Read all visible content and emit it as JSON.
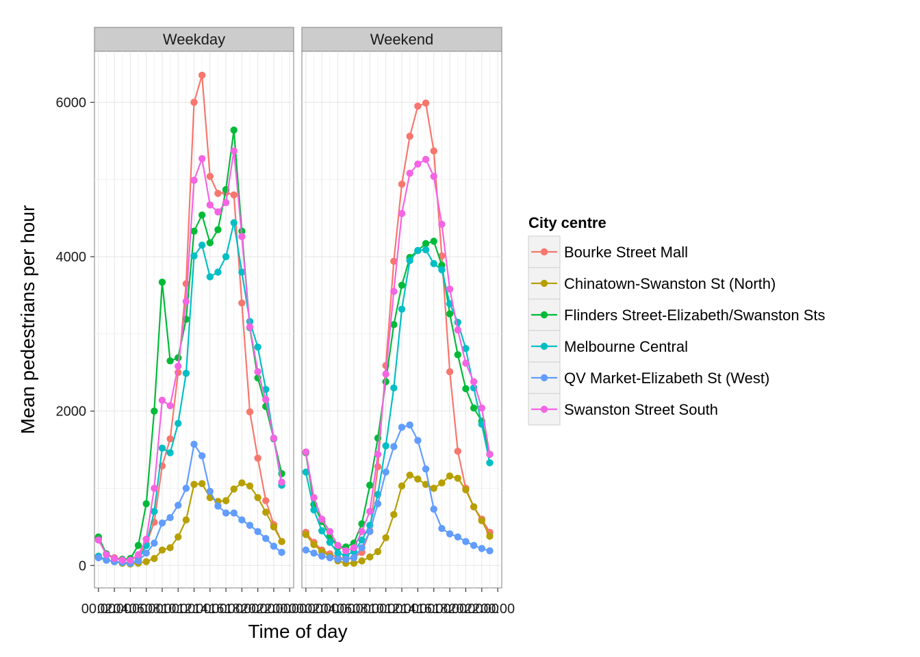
{
  "chart_data": {
    "type": "line",
    "xlabel": "Time of day",
    "ylabel": "Mean pedestrians per hour",
    "ylim": [
      -290,
      6660
    ],
    "y_ticks": [
      0,
      2000,
      4000,
      6000
    ],
    "y_tick_labels": [
      "0",
      "2000",
      "4000",
      "6000"
    ],
    "x": [
      0,
      1,
      2,
      3,
      4,
      5,
      6,
      7,
      8,
      9,
      10,
      11,
      12,
      13,
      14,
      15,
      16,
      17,
      18,
      19,
      20,
      21,
      22,
      23
    ],
    "x_tick_labels": [
      "00:00",
      "02:00",
      "04:00",
      "06:00",
      "08:00",
      "10:00",
      "12:00",
      "14:00",
      "16:00",
      "18:00",
      "20:00",
      "22:00",
      "00:00"
    ],
    "grid": true,
    "legend": {
      "title": "City centre",
      "placement": "right",
      "entries": [
        "Bourke Street Mall",
        "Chinatown-Swanston St (North)",
        "Flinders Street-Elizabeth/Swanston Sts",
        "Melbourne Central",
        "QV Market-Elizabeth St (West)",
        "Swanston Street South"
      ]
    },
    "colors": [
      "#F8766D",
      "#B79F00",
      "#00BA38",
      "#00BFC4",
      "#619CFF",
      "#F564E3"
    ],
    "panels": [
      {
        "label": "Weekday",
        "series": [
          {
            "name": "Bourke Street Mall",
            "values": [
              350,
              150,
              100,
              80,
              70,
              120,
              280,
              560,
              1290,
              1640,
              2500,
              3650,
              6000,
              6350,
              5040,
              4820,
              4830,
              4800,
              3400,
              1990,
              1390,
              840,
              530,
              310
            ]
          },
          {
            "name": "Chinatown-Swanston St (North)",
            "values": [
              120,
              70,
              50,
              30,
              20,
              30,
              50,
              90,
              200,
              230,
              370,
              590,
              1050,
              1060,
              880,
              830,
              840,
              990,
              1070,
              1030,
              880,
              690,
              500,
              310
            ]
          },
          {
            "name": "Flinders Street-Elizabeth/Swanston Sts",
            "values": [
              370,
              150,
              90,
              80,
              90,
              260,
              800,
              2000,
              3670,
              2650,
              2690,
              3190,
              4330,
              4540,
              4180,
              4350,
              4870,
              5640,
              4330,
              3080,
              2430,
              2060,
              1640,
              1190
            ]
          },
          {
            "name": "Melbourne Central",
            "values": [
              120,
              70,
              50,
              40,
              30,
              70,
              260,
              700,
              1520,
              1460,
              1840,
              2490,
              4010,
              4150,
              3740,
              3800,
              4000,
              4440,
              3800,
              3160,
              2830,
              2280,
              1650,
              1040
            ]
          },
          {
            "name": "QV Market-Elizabeth St (West)",
            "values": [
              100,
              70,
              50,
              40,
              30,
              60,
              160,
              290,
              550,
              620,
              780,
              1000,
              1570,
              1420,
              960,
              770,
              680,
              680,
              590,
              520,
              440,
              350,
              250,
              170
            ]
          },
          {
            "name": "Swanston Street South",
            "values": [
              330,
              140,
              90,
              70,
              70,
              140,
              340,
              1000,
              2140,
              2070,
              2580,
              3420,
              4990,
              5270,
              4670,
              4580,
              4700,
              5370,
              4260,
              3090,
              2510,
              2150,
              1650,
              1080
            ]
          }
        ]
      },
      {
        "label": "Weekend",
        "series": [
          {
            "name": "Bourke Street Mall",
            "values": [
              430,
              300,
              200,
              150,
              100,
              90,
              100,
              170,
              450,
              1280,
              2590,
              3940,
              4940,
              5560,
              5950,
              5990,
              5370,
              4010,
              2510,
              1480,
              1000,
              760,
              600,
              430
            ]
          },
          {
            "name": "Chinatown-Swanston St (North)",
            "values": [
              400,
              270,
              180,
              120,
              60,
              30,
              30,
              60,
              110,
              180,
              360,
              660,
              1030,
              1170,
              1120,
              1050,
              1000,
              1070,
              1160,
              1130,
              980,
              760,
              580,
              380
            ]
          },
          {
            "name": "Flinders Street-Elizabeth/Swanston Sts",
            "values": [
              1460,
              790,
              570,
              380,
              240,
              240,
              290,
              540,
              1040,
              1650,
              2380,
              3120,
              3630,
              3990,
              4080,
              4170,
              4200,
              3890,
              3260,
              2730,
              2290,
              2040,
              1870,
              1440
            ]
          },
          {
            "name": "Melbourne Central",
            "values": [
              1210,
              720,
              450,
              300,
              160,
              130,
              180,
              330,
              520,
              920,
              1550,
              2300,
              3320,
              3950,
              4080,
              4090,
              3910,
              3830,
              3390,
              3150,
              2810,
              2300,
              1830,
              1330
            ]
          },
          {
            "name": "QV Market-Elizabeth St (West)",
            "values": [
              200,
              160,
              120,
              100,
              80,
              80,
              100,
              230,
              440,
              800,
              1210,
              1540,
              1790,
              1820,
              1620,
              1250,
              730,
              480,
              410,
              370,
              310,
              260,
              220,
              190
            ]
          },
          {
            "name": "Swanston Street South",
            "values": [
              1470,
              880,
              600,
              440,
              260,
              190,
              230,
              440,
              700,
              1440,
              2480,
              3550,
              4560,
              5080,
              5200,
              5260,
              5040,
              4420,
              3580,
              3050,
              2620,
              2380,
              2040,
              1440
            ]
          }
        ]
      }
    ]
  }
}
